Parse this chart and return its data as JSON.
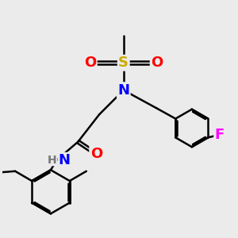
{
  "background_color": "#ebebeb",
  "atom_colors": {
    "C": "#000000",
    "N": "#0000ff",
    "O": "#ff0000",
    "S": "#ccaa00",
    "F": "#ff00ff",
    "H": "#777777"
  },
  "bond_lw": 1.8,
  "font_size_atom": 13,
  "font_size_small": 10
}
